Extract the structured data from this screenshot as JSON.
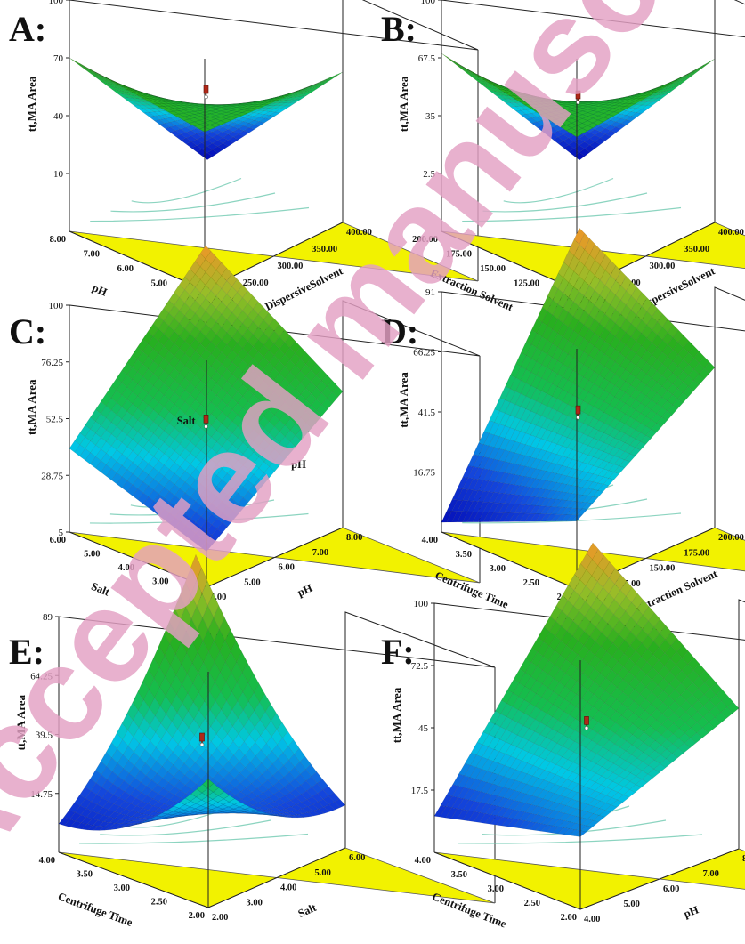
{
  "watermark": "Accepted manuscript",
  "chart_data": [
    {
      "panel": "A:",
      "type": "surface3d",
      "zlabel": "tt,MA Area",
      "zticks": [
        "10",
        "40",
        "70",
        "100"
      ],
      "zlim": [
        -20,
        100
      ],
      "x": {
        "label": "DispersiveSolvent",
        "ticks": [
          "200.00",
          "250.00",
          "300.00",
          "350.00",
          "400.00"
        ],
        "range": [
          200,
          400
        ]
      },
      "y": {
        "label": "pH",
        "ticks": [
          "4.00",
          "5.00",
          "6.00",
          "7.00",
          "8.00"
        ],
        "range": [
          4,
          8
        ]
      },
      "corners": {
        "x_low_y_low": 62,
        "x_high_y_low": 58,
        "x_low_y_high": 70,
        "x_high_y_high": -18
      },
      "design_point": 52
    },
    {
      "panel": "B:",
      "type": "surface3d",
      "zlabel": "tt,MA Area",
      "zticks": [
        "2.5",
        "35",
        "67.5",
        "100"
      ],
      "zlim": [
        -30,
        100
      ],
      "x": {
        "label": "DispersiveSolvent",
        "ticks": [
          "200.00",
          "250.00",
          "300.00",
          "350.00",
          "400.00"
        ],
        "range": [
          200,
          400
        ]
      },
      "y": {
        "label": "Extraction Solvent",
        "ticks": [
          "100.00",
          "125.00",
          "150.00",
          "175.00",
          "200.00"
        ],
        "range": [
          100,
          200
        ]
      },
      "corners": {
        "x_low_y_low": 56,
        "x_high_y_low": 62,
        "x_low_y_high": 70,
        "x_high_y_high": -28
      },
      "design_point": 45
    },
    {
      "panel": "C:",
      "type": "surface3d",
      "zlabel": "tt,MA Area",
      "zticks": [
        "5",
        "28.75",
        "52.5",
        "76.25",
        "100"
      ],
      "zlim": [
        5,
        100
      ],
      "surface_labels": [
        "Salt",
        "pH"
      ],
      "x": {
        "label": "pH",
        "ticks": [
          "4.00",
          "5.00",
          "6.00",
          "7.00",
          "8.00"
        ],
        "range": [
          4,
          8
        ]
      },
      "y": {
        "label": "Salt",
        "ticks": [
          "2.00",
          "3.00",
          "4.00",
          "5.00",
          "6.00"
        ],
        "range": [
          2,
          6
        ]
      },
      "corners": {
        "x_low_y_low": 20,
        "x_high_y_low": 62,
        "x_low_y_high": 40,
        "x_high_y_high": 100
      },
      "design_point": 52
    },
    {
      "panel": "D:",
      "type": "surface3d",
      "zlabel": "tt,MA Area",
      "zticks": [
        "16.75",
        "41.5",
        "66.25",
        "91"
      ],
      "zlim": [
        -8,
        91
      ],
      "x": {
        "label": "Extraction Solvent",
        "ticks": [
          "100.00",
          "125.00",
          "150.00",
          "175.00",
          "200.00"
        ],
        "range": [
          100,
          200
        ]
      },
      "y": {
        "label": "Centrifuge Time",
        "ticks": [
          "2.00",
          "2.50",
          "3.00",
          "3.50",
          "4.00"
        ],
        "range": [
          2,
          4
        ]
      },
      "corners": {
        "x_low_y_low": 20,
        "x_high_y_low": 58,
        "x_low_y_high": -4,
        "x_high_y_high": 92
      },
      "design_point": 42
    },
    {
      "panel": "E:",
      "type": "surface3d",
      "zlabel": "tt,MA Area",
      "zticks": [
        "14.75",
        "39.5",
        "64.25",
        "89"
      ],
      "zlim": [
        -10,
        89
      ],
      "x": {
        "label": "Salt",
        "ticks": [
          "2.00",
          "3.00",
          "4.00",
          "5.00",
          "6.00"
        ],
        "range": [
          2,
          6
        ]
      },
      "y": {
        "label": "Centrifuge Time",
        "ticks": [
          "2.00",
          "2.50",
          "3.00",
          "3.50",
          "4.00"
        ],
        "range": [
          2,
          4
        ]
      },
      "corners": {
        "x_low_y_low": 44,
        "x_high_y_low": 8,
        "x_low_y_high": 2,
        "x_high_y_high": 90
      },
      "curvature": -10,
      "design_point": 38
    },
    {
      "panel": "F:",
      "type": "surface3d",
      "zlabel": "tt,MA Area",
      "zticks": [
        "17.5",
        "45",
        "72.5",
        "100"
      ],
      "zlim": [
        -10,
        100
      ],
      "x": {
        "label": "pH",
        "ticks": [
          "4.00",
          "5.00",
          "6.00",
          "7.00",
          "8.00"
        ],
        "range": [
          4,
          8
        ]
      },
      "y": {
        "label": "Centrifuge Time",
        "ticks": [
          "2.00",
          "2.50",
          "3.00",
          "3.50",
          "4.00"
        ],
        "range": [
          2,
          4
        ]
      },
      "corners": {
        "x_low_y_low": 22,
        "x_high_y_low": 52,
        "x_low_y_high": 6,
        "x_high_y_high": 100
      },
      "design_point": 48
    }
  ]
}
